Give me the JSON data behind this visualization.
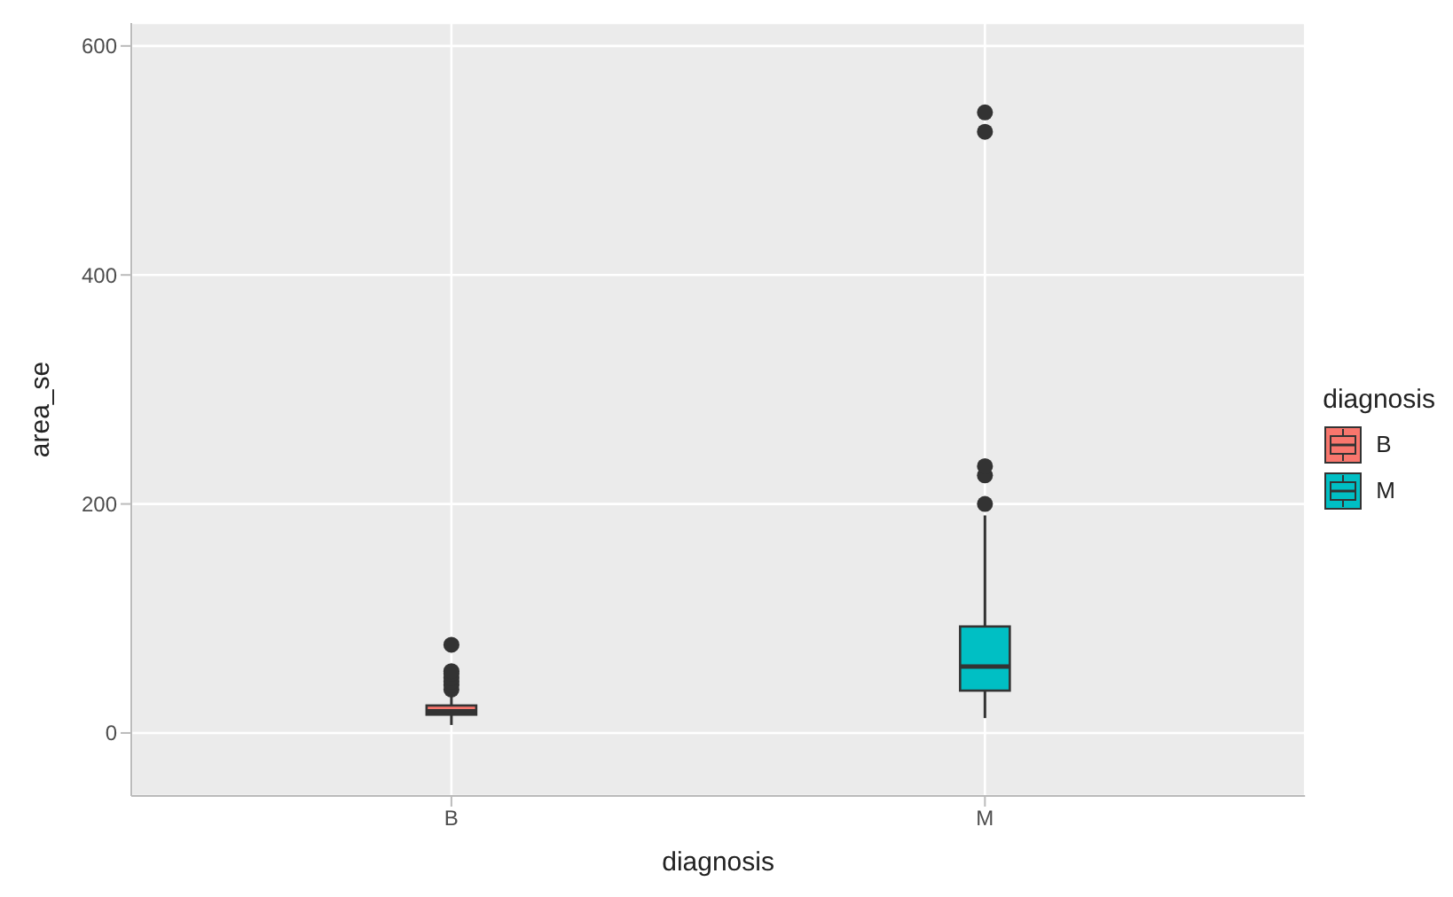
{
  "chart_data": {
    "type": "box",
    "xlabel": "diagnosis",
    "ylabel": "area_se",
    "legend_title": "diagnosis",
    "categories": [
      "B",
      "M"
    ],
    "series": [
      {
        "name": "B",
        "color": "#f8766d",
        "boxes": [
          {
            "low": 7,
            "q1": 16,
            "median": 19,
            "q3": 24,
            "high": 36,
            "outliers": [
              38,
              42,
              45,
              48,
              52,
              54,
              77
            ]
          },
          null
        ]
      },
      {
        "name": "M",
        "color": "#00bfc4",
        "boxes": [
          null,
          {
            "low": 13,
            "q1": 37,
            "median": 58,
            "q3": 93,
            "high": 190,
            "outliers": [
              200,
              225,
              233,
              525,
              542
            ]
          }
        ]
      }
    ],
    "ylim": [
      -55,
      620
    ],
    "yticks": [
      0,
      200,
      400,
      600
    ],
    "grid": true,
    "legend": "right"
  }
}
